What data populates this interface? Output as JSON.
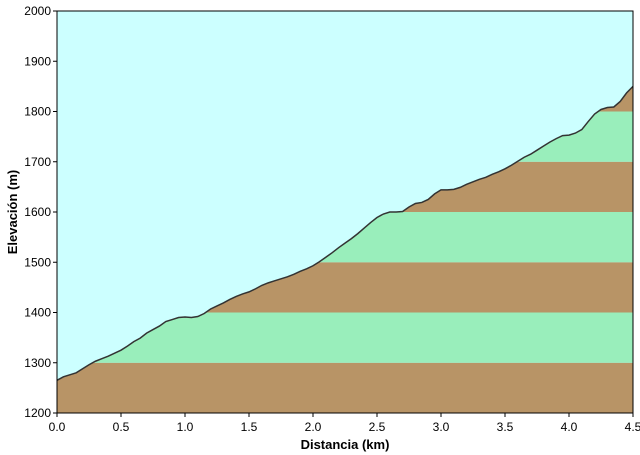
{
  "chart_data": {
    "type": "area",
    "xlabel": "Distancia  (km)",
    "ylabel": "Elevación (m)",
    "xlim": [
      0.0,
      4.5
    ],
    "ylim": [
      1200,
      2000
    ],
    "x_ticks": [
      "0.0",
      "0.5",
      "1.0",
      "1.5",
      "2.0",
      "2.5",
      "3.0",
      "3.5",
      "4.0",
      "4.5"
    ],
    "y_ticks": [
      "1200",
      "1300",
      "1400",
      "1500",
      "1600",
      "1700",
      "1800",
      "1900",
      "2000"
    ],
    "band_step": 100,
    "grid": false,
    "legend": "none",
    "colors": {
      "sky": "#CCFFFF",
      "band_dark": "#B89466",
      "band_light": "#99EEBB",
      "profile_line": "#333333",
      "axis": "#000000"
    },
    "series": [
      {
        "x": [
          0.0,
          0.05,
          0.1,
          0.15,
          0.2,
          0.25,
          0.3,
          0.35,
          0.4,
          0.45,
          0.5,
          0.55,
          0.6,
          0.65,
          0.7,
          0.75,
          0.8,
          0.85,
          0.9,
          0.95,
          1.0,
          1.05,
          1.1,
          1.15,
          1.2,
          1.25,
          1.3,
          1.35,
          1.4,
          1.45,
          1.5,
          1.55,
          1.6,
          1.65,
          1.7,
          1.75,
          1.8,
          1.85,
          1.9,
          1.95,
          2.0,
          2.05,
          2.1,
          2.15,
          2.2,
          2.25,
          2.3,
          2.35,
          2.4,
          2.45,
          2.5,
          2.55,
          2.6,
          2.65,
          2.7,
          2.75,
          2.8,
          2.85,
          2.9,
          2.95,
          3.0,
          3.05,
          3.1,
          3.15,
          3.2,
          3.25,
          3.3,
          3.35,
          3.4,
          3.45,
          3.5,
          3.55,
          3.6,
          3.65,
          3.7,
          3.75,
          3.8,
          3.85,
          3.9,
          3.95,
          4.0,
          4.05,
          4.1,
          4.15,
          4.2,
          4.25,
          4.3,
          4.35,
          4.4,
          4.45,
          4.5
        ],
        "y": [
          1265,
          1272,
          1276,
          1280,
          1288,
          1296,
          1303,
          1308,
          1313,
          1319,
          1325,
          1333,
          1342,
          1349,
          1359,
          1366,
          1373,
          1382,
          1386,
          1390,
          1391,
          1390,
          1392,
          1398,
          1407,
          1413,
          1419,
          1426,
          1432,
          1437,
          1441,
          1447,
          1454,
          1459,
          1463,
          1467,
          1471,
          1476,
          1482,
          1487,
          1493,
          1501,
          1510,
          1519,
          1529,
          1538,
          1547,
          1557,
          1568,
          1579,
          1589,
          1596,
          1600,
          1600,
          1601,
          1610,
          1617,
          1619,
          1625,
          1636,
          1644,
          1644,
          1645,
          1649,
          1655,
          1660,
          1665,
          1669,
          1675,
          1680,
          1686,
          1693,
          1701,
          1709,
          1715,
          1723,
          1731,
          1739,
          1746,
          1752,
          1753,
          1757,
          1764,
          1780,
          1795,
          1804,
          1808,
          1809,
          1820,
          1837,
          1850
        ]
      }
    ]
  }
}
